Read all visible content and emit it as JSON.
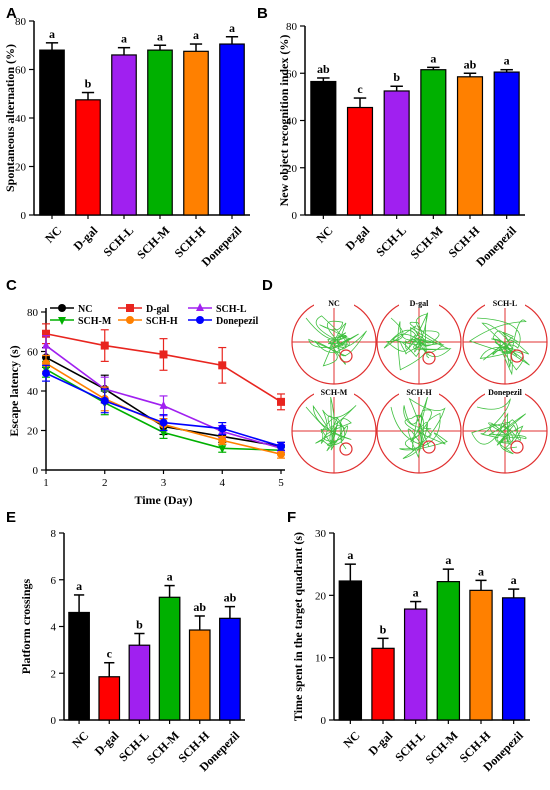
{
  "chart_data": [
    {
      "panel": "A",
      "type": "bar",
      "ylabel": "Spontaneous alternation (%)",
      "ylim": [
        0,
        80
      ],
      "yticks": [
        0,
        20,
        40,
        60,
        80
      ],
      "categories": [
        "NC",
        "D-gal",
        "SCH-L",
        "SCH-M",
        "SCH-H",
        "Donepezil"
      ],
      "values": [
        68,
        47.5,
        66,
        68,
        67.5,
        70.5
      ],
      "errors": [
        3,
        3,
        3,
        2,
        3,
        3
      ],
      "significance": [
        "a",
        "b",
        "a",
        "a",
        "a",
        "a"
      ],
      "colors": [
        "#000000",
        "#ff0000",
        "#a020f0",
        "#00b000",
        "#ff8000",
        "#0000ff"
      ]
    },
    {
      "panel": "B",
      "type": "bar",
      "ylabel": "New object recognition index (%)",
      "ylim": [
        0,
        80
      ],
      "yticks": [
        0,
        20,
        40,
        60,
        80
      ],
      "categories": [
        "NC",
        "D-gal",
        "SCH-L",
        "SCH-M",
        "SCH-H",
        "Donepezil"
      ],
      "values": [
        56.5,
        45.5,
        52.5,
        61.5,
        58.5,
        60.5
      ],
      "errors": [
        1.5,
        4,
        2,
        1,
        1.5,
        1
      ],
      "significance": [
        "ab",
        "c",
        "b",
        "a",
        "ab",
        "a"
      ],
      "colors": [
        "#000000",
        "#ff0000",
        "#a020f0",
        "#00b000",
        "#ff8000",
        "#0000ff"
      ]
    },
    {
      "panel": "C",
      "type": "line",
      "xlabel": "Time (Day)",
      "ylabel": "Escape latency (s)",
      "ylim": [
        0,
        80
      ],
      "yticks": [
        0,
        20,
        40,
        60,
        80
      ],
      "x": [
        1,
        2,
        3,
        4,
        5
      ],
      "series": [
        {
          "name": "NC",
          "color": "#000000",
          "marker": "circle",
          "values": [
            57,
            41,
            22,
            17,
            12
          ],
          "errors": [
            5,
            7,
            4,
            3,
            2
          ]
        },
        {
          "name": "D-gal",
          "color": "#e8251f",
          "marker": "square",
          "values": [
            69,
            63,
            58.5,
            53,
            34.5
          ],
          "errors": [
            5,
            8,
            8,
            9,
            4
          ]
        },
        {
          "name": "SCH-L",
          "color": "#a020f0",
          "marker": "triangle-up",
          "values": [
            63,
            41,
            32.5,
            19.5,
            11
          ],
          "errors": [
            5,
            6,
            5,
            3,
            2
          ]
        },
        {
          "name": "SCH-M",
          "color": "#00b000",
          "marker": "triangle-down",
          "values": [
            51,
            34,
            19,
            11,
            10
          ],
          "errors": [
            4,
            6,
            3,
            2,
            2
          ]
        },
        {
          "name": "SCH-H",
          "color": "#ff8000",
          "marker": "circle",
          "values": [
            54,
            36,
            23,
            15,
            8
          ],
          "errors": [
            4,
            6,
            3,
            2,
            2
          ]
        },
        {
          "name": "Donepezil",
          "color": "#0000ff",
          "marker": "circle",
          "values": [
            49,
            35,
            24,
            21,
            12
          ],
          "errors": [
            4,
            6,
            4,
            3,
            2
          ]
        }
      ]
    },
    {
      "panel": "E",
      "type": "bar",
      "ylabel": "Platform crossings",
      "ylim": [
        0,
        8
      ],
      "yticks": [
        0,
        2,
        4,
        6,
        8
      ],
      "categories": [
        "NC",
        "D-gal",
        "SCH-L",
        "SCH-M",
        "SCH-H",
        "Donepezil"
      ],
      "values": [
        4.6,
        1.85,
        3.2,
        5.25,
        3.85,
        4.35
      ],
      "errors": [
        0.75,
        0.6,
        0.5,
        0.5,
        0.6,
        0.5
      ],
      "significance": [
        "a",
        "c",
        "b",
        "a",
        "ab",
        "ab"
      ],
      "colors": [
        "#000000",
        "#ff0000",
        "#a020f0",
        "#00b000",
        "#ff8000",
        "#0000ff"
      ]
    },
    {
      "panel": "F",
      "type": "bar",
      "ylabel": "Time spent in the target quadrant (s)",
      "ylim": [
        0,
        30
      ],
      "yticks": [
        0,
        10,
        20,
        30
      ],
      "categories": [
        "NC",
        "D-gal",
        "SCH-L",
        "SCH-M",
        "SCH-H",
        "Donepezil"
      ],
      "values": [
        22.3,
        11.5,
        17.8,
        22.2,
        20.8,
        19.6
      ],
      "errors": [
        2.7,
        1.6,
        1.2,
        2,
        1.6,
        1.4
      ],
      "significance": [
        "a",
        "b",
        "a",
        "a",
        "a",
        "a"
      ],
      "colors": [
        "#000000",
        "#ff0000",
        "#a020f0",
        "#00b000",
        "#ff8000",
        "#0000ff"
      ]
    }
  ],
  "maze_panel": {
    "panel": "D",
    "titles": [
      "NC",
      "D-gal",
      "SCH-L",
      "SCH-M",
      "SCH-H",
      "Donepezil"
    ],
    "ring_color": "#e03030",
    "path_color": "#40c040"
  }
}
